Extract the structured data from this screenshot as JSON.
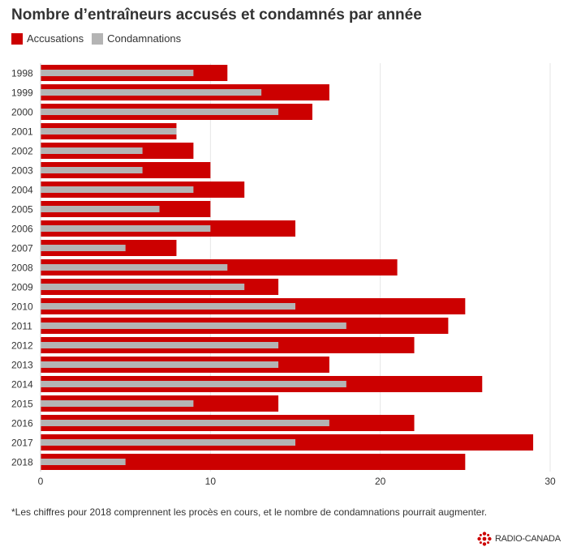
{
  "header": {
    "title": "Nombre d’entraîneurs accusés et condamnés par année"
  },
  "footnote": "*Les chiffres pour 2018 comprennent les procès en cours, et le nombre de condamnations pourrait augmenter.",
  "brand": {
    "name": "RADIO-CANADA",
    "color": "#cc0000"
  },
  "chart_data": {
    "type": "bar",
    "orientation": "horizontal",
    "title": "Nombre d’entraîneurs accusés et condamnés par année",
    "xlabel": "",
    "ylabel": "",
    "xlim": [
      0,
      30
    ],
    "xticks": [
      "0",
      "10",
      "20",
      "30"
    ],
    "grid": true,
    "legend_position": "top-left",
    "categories": [
      "1998",
      "1999",
      "2000",
      "2001",
      "2002",
      "2003",
      "2004",
      "2005",
      "2006",
      "2007",
      "2008",
      "2009",
      "2010",
      "2011",
      "2012",
      "2013",
      "2014",
      "2015",
      "2016",
      "2017",
      "2018"
    ],
    "series": [
      {
        "name": "Accusations",
        "color": "#cc0000",
        "values": [
          11,
          17,
          16,
          8,
          9,
          10,
          12,
          10,
          15,
          8,
          21,
          14,
          25,
          24,
          22,
          17,
          26,
          14,
          22,
          29,
          25
        ]
      },
      {
        "name": "Condamnations",
        "color": "#b4b4b4",
        "values": [
          9,
          13,
          14,
          8,
          6,
          6,
          9,
          7,
          10,
          5,
          11,
          12,
          15,
          18,
          14,
          14,
          18,
          9,
          17,
          15,
          5
        ]
      }
    ]
  }
}
